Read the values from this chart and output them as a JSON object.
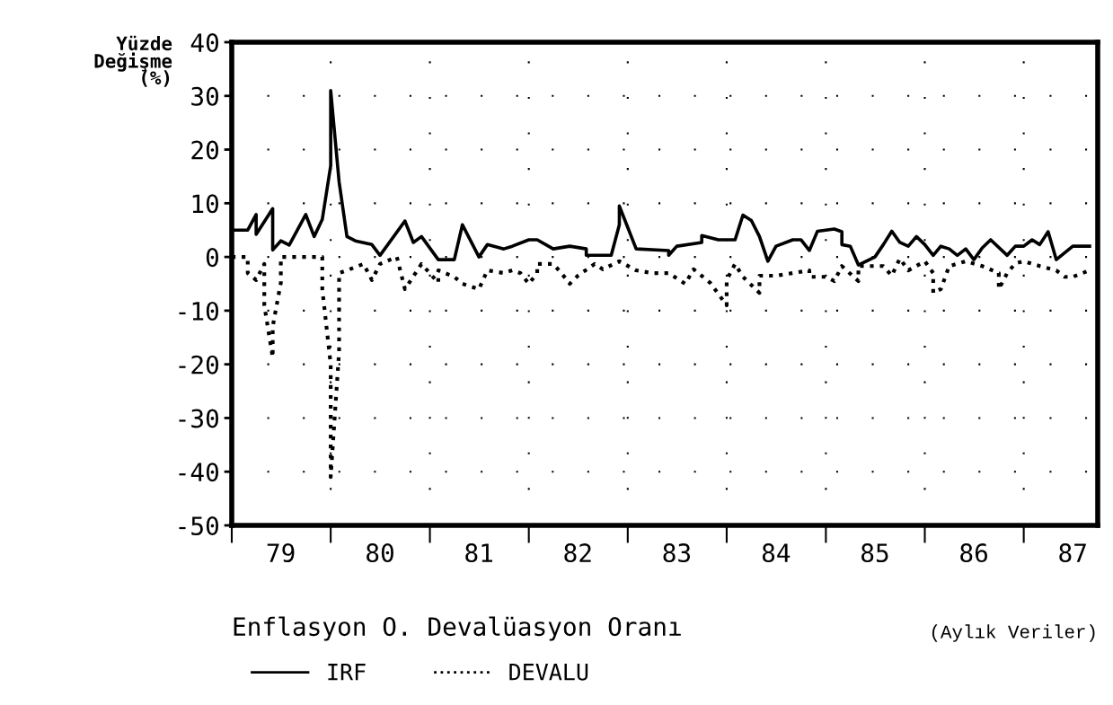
{
  "chart_data": {
    "type": "line",
    "title": "Enflasyon O. Devalüasyon Oranı",
    "ylabel": "Yüzde\nDeğişme\n(%)",
    "annotations": [
      "(Aylık Veriler)"
    ],
    "xlim": [
      "1979-01",
      "1987-10"
    ],
    "ylim": [
      -50,
      40
    ],
    "xticks": [
      {
        "value": "1979-01",
        "label": null
      },
      {
        "value": "1979-07",
        "label": "79"
      },
      {
        "value": "1980-01",
        "label": null
      },
      {
        "value": "1980-07",
        "label": "80"
      },
      {
        "value": "1981-01",
        "label": null
      },
      {
        "value": "1981-07",
        "label": "81"
      },
      {
        "value": "1982-01",
        "label": null
      },
      {
        "value": "1982-07",
        "label": "82"
      },
      {
        "value": "1983-01",
        "label": null
      },
      {
        "value": "1983-07",
        "label": "83"
      },
      {
        "value": "1984-01",
        "label": null
      },
      {
        "value": "1984-07",
        "label": "84"
      },
      {
        "value": "1985-01",
        "label": null
      },
      {
        "value": "1985-07",
        "label": "85"
      },
      {
        "value": "1986-01",
        "label": null
      },
      {
        "value": "1986-07",
        "label": "86"
      },
      {
        "value": "1987-01",
        "label": null
      },
      {
        "value": "1987-07",
        "label": "87"
      }
    ],
    "yticks": [
      40,
      30,
      20,
      10,
      0,
      -10,
      -20,
      -30,
      -40,
      -50
    ],
    "grid": true,
    "legend": "bottom",
    "series": [
      {
        "name": "IRF",
        "color": "#000000",
        "line_style": "solid",
        "x": [
          "1979-01",
          "1979-03",
          "1979-04",
          "1979-04",
          "1979-06",
          "1979-06",
          "1979-07",
          "1979-08",
          "1979-10",
          "1979-11",
          "1979-12",
          "1980-01",
          "1980-01",
          "1980-02",
          "1980-03",
          "1980-04",
          "1980-06",
          "1980-07",
          "1980-10",
          "1980-11",
          "1980-12",
          "1981-02",
          "1981-04",
          "1981-05",
          "1981-07",
          "1981-08",
          "1981-10",
          "1981-11",
          "1982-01",
          "1982-02",
          "1982-04",
          "1982-06",
          "1982-08",
          "1982-08",
          "1982-11",
          "1982-12",
          "1982-12",
          "1983-01",
          "1983-02",
          "1983-06",
          "1983-06",
          "1983-07",
          "1983-10",
          "1983-10",
          "1983-12",
          "1984-02",
          "1984-03",
          "1984-04",
          "1984-05",
          "1984-06",
          "1984-07",
          "1984-09",
          "1984-10",
          "1984-11",
          "1984-12",
          "1985-02",
          "1985-03",
          "1985-03",
          "1985-04",
          "1985-05",
          "1985-07",
          "1985-08",
          "1985-09",
          "1985-10",
          "1985-11",
          "1985-12",
          "1986-01",
          "1986-02",
          "1986-03",
          "1986-04",
          "1986-05",
          "1986-06",
          "1986-07",
          "1986-08",
          "1986-09",
          "1986-11",
          "1986-12",
          "1987-01",
          "1987-02",
          "1987-03",
          "1987-04",
          "1987-05",
          "1987-07",
          "1987-09"
        ],
        "values": [
          5,
          5,
          7.9,
          4.2,
          9,
          1.3,
          3,
          2.2,
          7.9,
          3.8,
          7,
          17,
          31,
          14,
          3.8,
          3,
          2.3,
          0.3,
          6.7,
          2.7,
          3.8,
          -0.5,
          -0.5,
          6,
          0,
          2.3,
          1.5,
          2,
          3.2,
          3.2,
          1.5,
          2,
          1.5,
          0.3,
          0.3,
          6,
          9.5,
          5.5,
          1.5,
          1.2,
          0.3,
          2,
          2.7,
          4,
          3.2,
          3.2,
          7.8,
          6.8,
          3.8,
          -0.8,
          2,
          3.2,
          3.2,
          1.2,
          4.8,
          5.2,
          4.7,
          2.3,
          2,
          -1.5,
          0,
          2.3,
          4.8,
          2.7,
          2,
          3.8,
          2.3,
          0.3,
          2,
          1.5,
          0.3,
          1.5,
          -0.5,
          1.7,
          3.2,
          0.3,
          2,
          2,
          3.2,
          2.3,
          4.7,
          -0.5,
          2,
          2
        ]
      },
      {
        "name": "DEVALU",
        "color": "#000000",
        "line_style": "dotted",
        "x": [
          "1979-01",
          "1979-03",
          "1979-03",
          "1979-04",
          "1979-05",
          "1979-05",
          "1979-06",
          "1979-06",
          "1979-07",
          "1979-07",
          "1979-12",
          "1979-12",
          "1980-01",
          "1980-01",
          "1980-02",
          "1980-02",
          "1980-03",
          "1980-05",
          "1980-06",
          "1980-07",
          "1980-09",
          "1980-10",
          "1980-12",
          "1981-02",
          "1981-02",
          "1981-04",
          "1981-05",
          "1981-07",
          "1981-08",
          "1981-10",
          "1981-11",
          "1981-12",
          "1982-01",
          "1982-02",
          "1982-02",
          "1982-04",
          "1982-05",
          "1982-06",
          "1982-07",
          "1982-09",
          "1982-10",
          "1982-12",
          "1983-02",
          "1983-04",
          "1983-06",
          "1983-08",
          "1983-09",
          "1983-11",
          "1984-01",
          "1984-01",
          "1984-02",
          "1984-03",
          "1984-05",
          "1984-05",
          "1984-07",
          "1984-09",
          "1984-11",
          "1984-11",
          "1985-01",
          "1985-02",
          "1985-03",
          "1985-05",
          "1985-05",
          "1985-08",
          "1985-09",
          "1985-10",
          "1985-11",
          "1986-01",
          "1986-02",
          "1986-02",
          "1986-03",
          "1986-04",
          "1986-06",
          "1986-08",
          "1986-10",
          "1986-10",
          "1986-11",
          "1986-12",
          "1987-01",
          "1987-03",
          "1987-05",
          "1987-06",
          "1987-07",
          "1987-09"
        ],
        "values": [
          0,
          0,
          -3,
          -4.3,
          -1.3,
          -9,
          -18.7,
          -13,
          -4.8,
          0,
          0,
          -6,
          -20,
          -41,
          -17.6,
          -3,
          -2.5,
          -1.3,
          -4.3,
          -1.3,
          0,
          -6,
          -1.3,
          -4.8,
          -2.5,
          -3.7,
          -5,
          -6,
          -2.5,
          -3,
          -2.5,
          -3,
          -5,
          -3,
          -1.3,
          -1.3,
          -3,
          -5,
          -3.5,
          -1.3,
          -2.3,
          -0.8,
          -2.5,
          -3,
          -3,
          -5,
          -2.3,
          -4.8,
          -9,
          -4.3,
          -1.3,
          -3.7,
          -6.7,
          -3.5,
          -3.5,
          -3,
          -2.5,
          -3.7,
          -3.7,
          -4.5,
          -1.7,
          -4.5,
          -1.7,
          -1.7,
          -3.5,
          -0.3,
          -2.5,
          -0.8,
          -3,
          -6.7,
          -6,
          -1.7,
          -0.8,
          -1.7,
          -3,
          -6,
          -3,
          -1.2,
          -0.8,
          -1.7,
          -2.5,
          -3.7,
          -3.7,
          -2.5
        ]
      }
    ]
  }
}
